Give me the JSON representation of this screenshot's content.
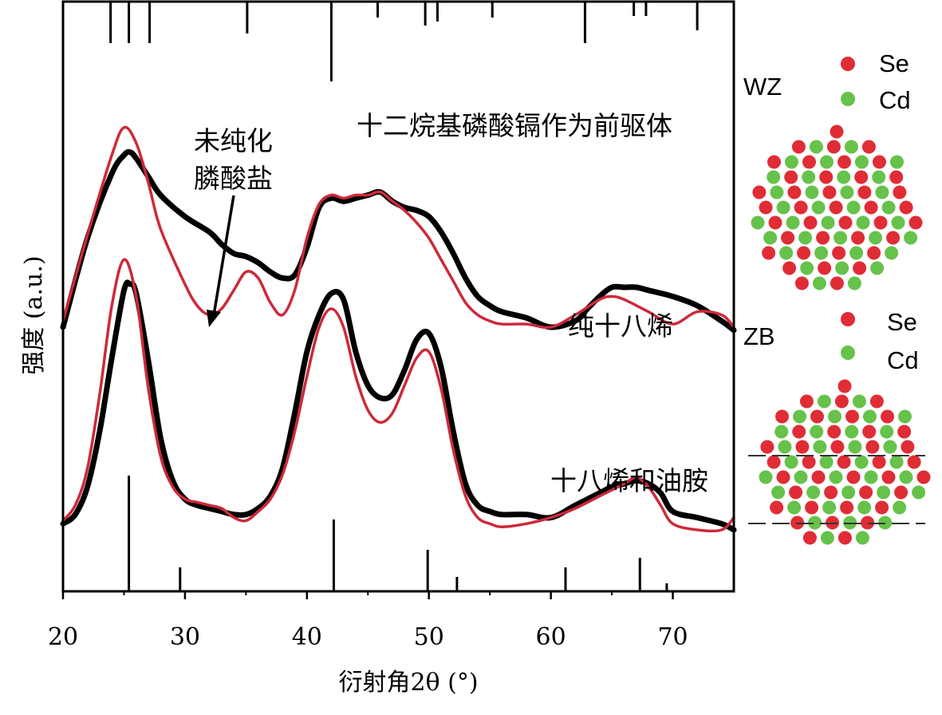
{
  "chart_data": {
    "type": "line",
    "xlabel": "衍射角2θ (°)",
    "ylabel": "强度 (a.u.)",
    "xlim": [
      20,
      75
    ],
    "x_ticks": [
      20,
      30,
      40,
      50,
      60,
      70
    ],
    "annotations": {
      "precursor": "十二烷基磷酸镉作为前驱体",
      "impurity_line1": "未纯化",
      "impurity_line2": "膦酸盐",
      "upper_curve": "纯十八烯",
      "lower_curve": "十八烯和油胺"
    },
    "reference_peaks_wz": [
      23.9,
      25.4,
      27.1,
      35.1,
      42.0,
      45.8,
      49.7,
      50.7,
      55.2,
      62.8,
      66.8,
      67.8,
      72.0
    ],
    "reference_peaks_zb": [
      25.4,
      29.6,
      42.2,
      49.9,
      52.3,
      61.2,
      67.3,
      69.5
    ],
    "series": [
      {
        "color": "#000000",
        "x": [
          20,
          22,
          24,
          25,
          25.5,
          26,
          27,
          28,
          30,
          32,
          33,
          34,
          35,
          36,
          37,
          38,
          39,
          40,
          41,
          42,
          43,
          44,
          45,
          46,
          47,
          48,
          49,
          50,
          51,
          52,
          53,
          54,
          55,
          56,
          58,
          60,
          62,
          63,
          64,
          65,
          66,
          67,
          68,
          70,
          72,
          74,
          75
        ],
        "y": [
          0.86,
          1.15,
          1.36,
          1.42,
          1.43,
          1.41,
          1.35,
          1.29,
          1.22,
          1.17,
          1.13,
          1.1,
          1.09,
          1.07,
          1.04,
          1.02,
          1.03,
          1.12,
          1.25,
          1.28,
          1.27,
          1.28,
          1.29,
          1.3,
          1.27,
          1.25,
          1.24,
          1.22,
          1.17,
          1.1,
          1.02,
          0.96,
          0.93,
          0.91,
          0.89,
          0.86,
          0.88,
          0.92,
          0.96,
          0.99,
          0.99,
          0.99,
          0.98,
          0.96,
          0.93,
          0.88,
          0.85
        ]
      },
      {
        "color": "#cc2a3a",
        "x": [
          20,
          22,
          24,
          25,
          26,
          27,
          28,
          30,
          31,
          32,
          33,
          34,
          35,
          36,
          37,
          38,
          39,
          40,
          41,
          42,
          43,
          44,
          45,
          46,
          47,
          48,
          49,
          50,
          51,
          52,
          53,
          54,
          55,
          56,
          58,
          60,
          62,
          64,
          65,
          66,
          68,
          70,
          72,
          74,
          75
        ],
        "y": [
          0.88,
          1.16,
          1.42,
          1.51,
          1.46,
          1.33,
          1.18,
          1.0,
          0.93,
          0.9,
          0.92,
          0.98,
          1.04,
          1.02,
          0.94,
          0.9,
          0.98,
          1.15,
          1.26,
          1.29,
          1.28,
          1.29,
          1.29,
          1.3,
          1.27,
          1.24,
          1.2,
          1.15,
          1.08,
          1.01,
          0.94,
          0.9,
          0.88,
          0.87,
          0.87,
          0.86,
          0.9,
          0.95,
          0.96,
          0.95,
          0.91,
          0.87,
          0.91,
          0.9,
          0.86
        ]
      },
      {
        "color": "#000000",
        "x": [
          20,
          21,
          22,
          23,
          24,
          25,
          25.5,
          26,
          27,
          28,
          29,
          30,
          31,
          32,
          33,
          34,
          35,
          36,
          37,
          38,
          39,
          40,
          41,
          42,
          43,
          44,
          45,
          46,
          47,
          48,
          49,
          50,
          51,
          52,
          53,
          54,
          55,
          56,
          58,
          60,
          62,
          64,
          65,
          66,
          67,
          68,
          69,
          70,
          72,
          74,
          75
        ],
        "y": [
          0.22,
          0.25,
          0.34,
          0.52,
          0.76,
          0.98,
          1.0,
          0.97,
          0.75,
          0.5,
          0.36,
          0.3,
          0.28,
          0.27,
          0.26,
          0.25,
          0.25,
          0.27,
          0.31,
          0.4,
          0.58,
          0.78,
          0.9,
          0.97,
          0.95,
          0.78,
          0.67,
          0.63,
          0.64,
          0.72,
          0.82,
          0.84,
          0.73,
          0.52,
          0.35,
          0.28,
          0.26,
          0.25,
          0.25,
          0.24,
          0.28,
          0.32,
          0.34,
          0.35,
          0.36,
          0.35,
          0.32,
          0.26,
          0.24,
          0.22,
          0.2
        ]
      },
      {
        "color": "#cc2a3a",
        "x": [
          20,
          21,
          22,
          23,
          24,
          25,
          26,
          27,
          28,
          29,
          30,
          31,
          32,
          33,
          34,
          35,
          36,
          37,
          38,
          39,
          40,
          41,
          42,
          43,
          44,
          45,
          46,
          47,
          48,
          49,
          50,
          51,
          52,
          53,
          54,
          55,
          56,
          58,
          60,
          62,
          64,
          66,
          67,
          68,
          69,
          70,
          72,
          74,
          75
        ],
        "y": [
          0.23,
          0.28,
          0.4,
          0.64,
          0.93,
          1.08,
          0.96,
          0.66,
          0.44,
          0.34,
          0.3,
          0.29,
          0.28,
          0.27,
          0.24,
          0.23,
          0.26,
          0.3,
          0.38,
          0.52,
          0.7,
          0.86,
          0.92,
          0.86,
          0.7,
          0.59,
          0.55,
          0.58,
          0.67,
          0.76,
          0.78,
          0.66,
          0.46,
          0.31,
          0.24,
          0.22,
          0.21,
          0.22,
          0.24,
          0.27,
          0.31,
          0.35,
          0.37,
          0.34,
          0.28,
          0.22,
          0.2,
          0.2,
          0.24
        ]
      }
    ]
  },
  "panels": {
    "wz": {
      "label": "WZ",
      "legend": [
        {
          "symbol_color": "#e02c35",
          "text": "Se"
        },
        {
          "symbol_color": "#66c24a",
          "text": "Cd"
        }
      ]
    },
    "zb": {
      "label": "ZB",
      "legend": [
        {
          "symbol_color": "#e02c35",
          "text": "Se"
        },
        {
          "symbol_color": "#66c24a",
          "text": "Cd"
        }
      ]
    }
  }
}
